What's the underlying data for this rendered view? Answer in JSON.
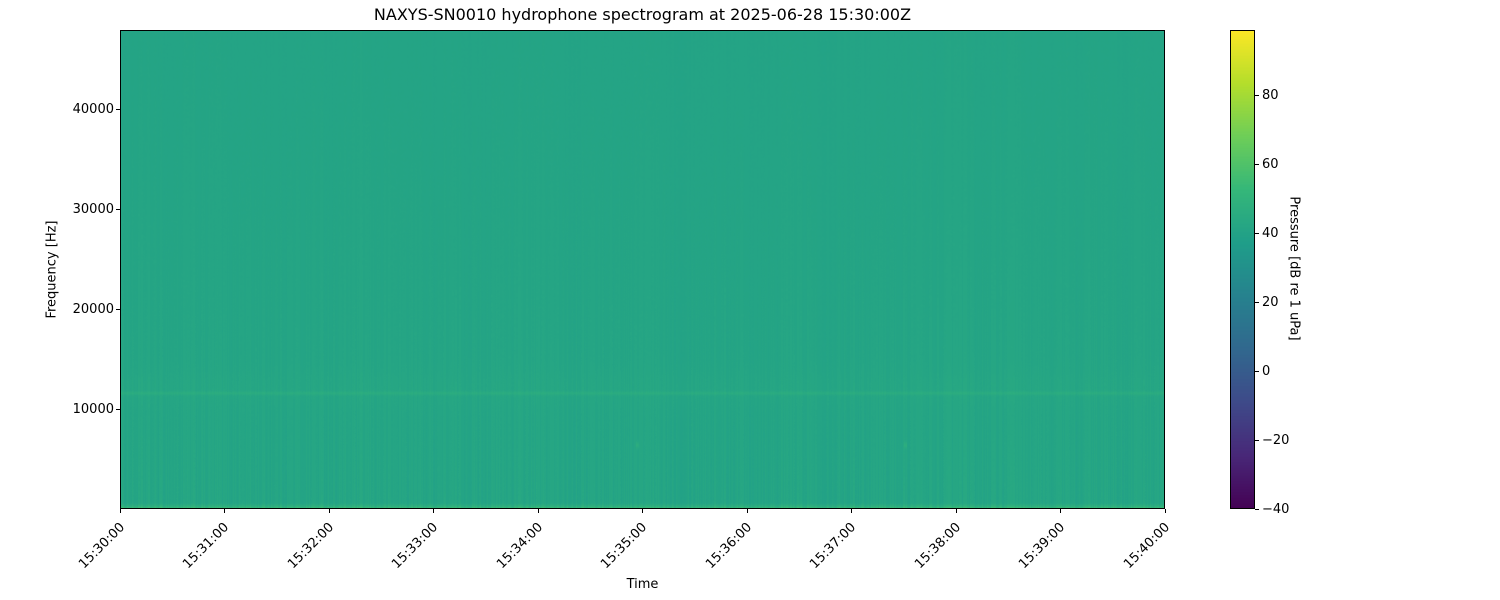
{
  "title": "NAXYS-SN0010 hydrophone spectrogram at 2025-06-28 15:30:00Z",
  "axes": {
    "xlabel": "Time",
    "ylabel": "Frequency [Hz]"
  },
  "colorbar": {
    "label": "Pressure [dB re 1 uPa]",
    "tick_labels": [
      "80",
      "60",
      "40",
      "20",
      "0",
      "−20",
      "−40"
    ],
    "colormap": "viridis",
    "colormap_stops": [
      "#440154",
      "#482878",
      "#3e4a89",
      "#31688e",
      "#26828e",
      "#1f9e89",
      "#35b779",
      "#6ece58",
      "#b5de2b",
      "#fde725"
    ]
  },
  "colors": {
    "background": "#ffffff",
    "text": "#000000",
    "spine": "#000000",
    "spectrogram_background": "#25a485",
    "low_band_green": "#41bb70"
  },
  "chart_data": {
    "type": "heatmap",
    "subtype": "spectrogram",
    "title": "NAXYS-SN0010 hydrophone spectrogram at 2025-06-28 15:30:00Z",
    "xlabel": "Time",
    "ylabel": "Frequency [Hz]",
    "x_tick_labels": [
      "15:30:00",
      "15:31:00",
      "15:32:00",
      "15:33:00",
      "15:34:00",
      "15:35:00",
      "15:36:00",
      "15:37:00",
      "15:38:00",
      "15:39:00",
      "15:40:00"
    ],
    "x_span_seconds": 600,
    "ylim": [
      0,
      48000
    ],
    "y_tick_values": [
      10000,
      20000,
      30000,
      40000
    ],
    "colormap": "viridis",
    "clim_db": [
      -40,
      99
    ],
    "colorbar_tick_values": [
      80,
      60,
      40,
      20,
      0,
      -20,
      -40
    ],
    "colorbar_label": "Pressure [dB re 1 uPa]",
    "background_level_db": 41,
    "features": [
      {
        "kind": "low-frequency-band",
        "below_hz": 400,
        "level_db": 55
      },
      {
        "kind": "tonal-line",
        "frequency_hz": 11600,
        "boost_db": 3.5
      },
      {
        "kind": "broad-band-hump",
        "center_hz": 12200,
        "half_width_hz": 1800,
        "boost_db": 0.8
      },
      {
        "kind": "vertical-striations",
        "amplitude_db": 1.5,
        "note": "faint broadband columns, stronger below 15 kHz"
      },
      {
        "kind": "transient",
        "time": "15:34:57",
        "frequency_hz": 6400,
        "boost_db": 5
      },
      {
        "kind": "transient",
        "time": "15:37:31",
        "frequency_hz": 6400,
        "boost_db": 5
      }
    ]
  }
}
